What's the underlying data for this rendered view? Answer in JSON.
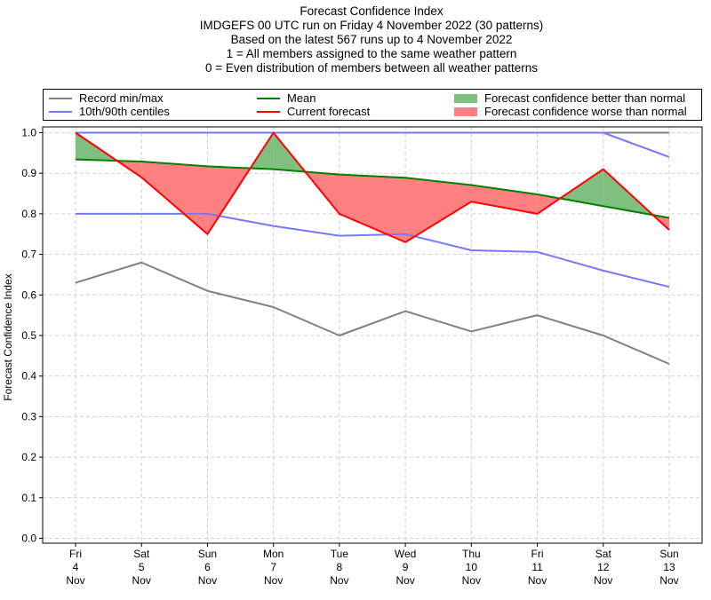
{
  "titles": [
    "Forecast Confidence Index",
    "IMDGEFS 00 UTC run on Friday 4 November 2022 (30 patterns)",
    "Based on the latest 567 runs up to 4 November 2022",
    "1 = All members assigned to the same weather pattern",
    "0 = Even distribution of members between all weather patterns"
  ],
  "legend": {
    "record": "Record min/max",
    "centiles": "10th/90th centiles",
    "mean": "Mean",
    "current": "Current forecast",
    "better": "Forecast confidence better than normal",
    "worse": "Forecast confidence worse than normal"
  },
  "colors": {
    "record": "#808080",
    "centiles": "#7777ff",
    "centile90": "#3333bb",
    "mean": "#008000",
    "current": "#ff0000",
    "better": "#7fbf7f",
    "worse": "#ff8080"
  },
  "chart_data": {
    "type": "line",
    "ylabel": "Forecast Confidence Index",
    "ylim": [
      0,
      1
    ],
    "yticks": [
      "0.0",
      "0.1",
      "0.2",
      "0.3",
      "0.4",
      "0.5",
      "0.6",
      "0.7",
      "0.8",
      "0.9",
      "1.0"
    ],
    "categories": [
      [
        "Fri",
        "4",
        "Nov"
      ],
      [
        "Sat",
        "5",
        "Nov"
      ],
      [
        "Sun",
        "6",
        "Nov"
      ],
      [
        "Mon",
        "7",
        "Nov"
      ],
      [
        "Tue",
        "8",
        "Nov"
      ],
      [
        "Wed",
        "9",
        "Nov"
      ],
      [
        "Thu",
        "10",
        "Nov"
      ],
      [
        "Fri",
        "11",
        "Nov"
      ],
      [
        "Sat",
        "12",
        "Nov"
      ],
      [
        "Sun",
        "13",
        "Nov"
      ]
    ],
    "grid": true,
    "legend_placement": "top",
    "series": [
      {
        "name": "Record min/max",
        "key": "record_max",
        "values": [
          1,
          1,
          1,
          1,
          1,
          1,
          1,
          1,
          1,
          1
        ]
      },
      {
        "name": "Record min/max",
        "key": "record_min",
        "values": [
          0.63,
          0.68,
          0.61,
          0.57,
          0.5,
          0.56,
          0.51,
          0.55,
          0.5,
          0.43
        ]
      },
      {
        "name": "10th/90th centiles",
        "key": "p90",
        "values": [
          1,
          1,
          1,
          1,
          1,
          1,
          1,
          1,
          1,
          0.94
        ]
      },
      {
        "name": "10th/90th centiles",
        "key": "p10",
        "values": [
          0.8,
          0.8,
          0.8,
          0.77,
          0.746,
          0.75,
          0.71,
          0.706,
          0.66,
          0.62
        ]
      },
      {
        "name": "Mean",
        "key": "mean",
        "values": [
          0.934,
          0.929,
          0.917,
          0.91,
          0.897,
          0.889,
          0.871,
          0.848,
          0.819,
          0.79
        ]
      },
      {
        "name": "Current forecast",
        "key": "current",
        "values": [
          1.0,
          0.89,
          0.75,
          1.0,
          0.8,
          0.73,
          0.83,
          0.8,
          0.91,
          0.76
        ]
      }
    ]
  }
}
